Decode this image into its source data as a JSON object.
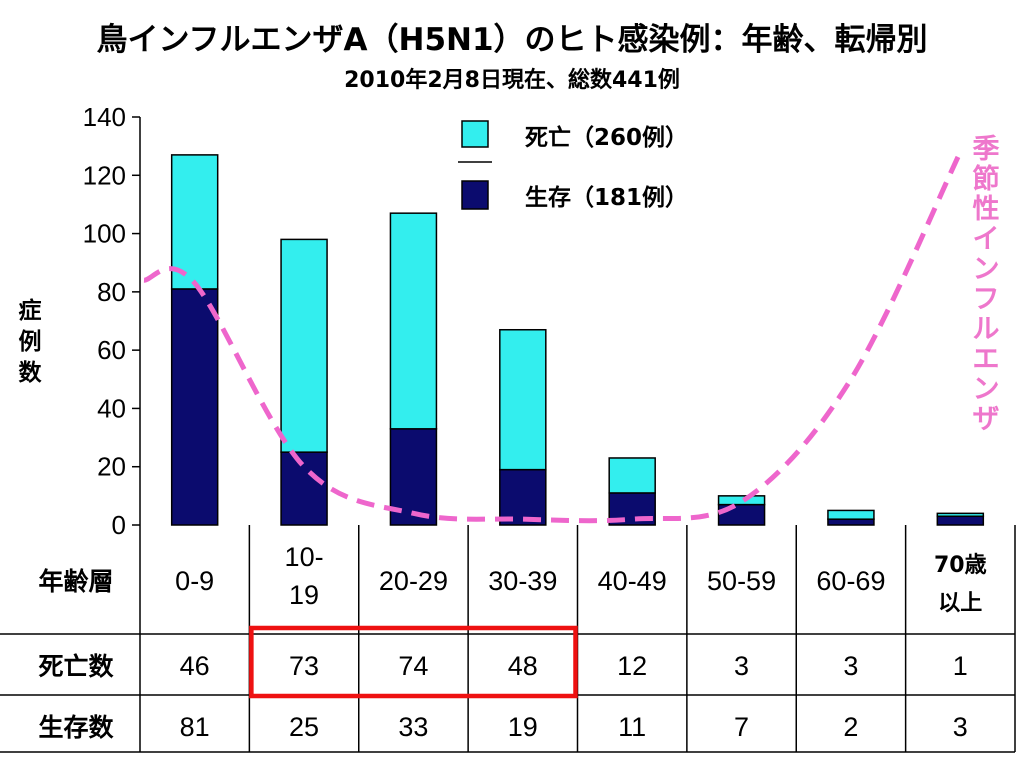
{
  "title": "鳥インフルエンザA（H5N1）のヒト感染例：年齢、転帰別",
  "subtitle": "2010年2月8日現在、総数441例",
  "colors": {
    "death": "#33eeee",
    "survive": "#0b0b6e",
    "seasonal": "#ee66cc",
    "highlight": "#ee1111"
  },
  "chart_data": {
    "type": "bar",
    "stacked": true,
    "categories": [
      "0-9",
      "10-19",
      "20-29",
      "30-39",
      "40-49",
      "50-59",
      "60-69",
      "70歳以上"
    ],
    "series": [
      {
        "name": "生存（181例）",
        "values": [
          81,
          25,
          33,
          19,
          11,
          7,
          2,
          3
        ]
      },
      {
        "name": "死亡（260例）",
        "values": [
          46,
          73,
          74,
          48,
          12,
          3,
          3,
          1
        ]
      }
    ],
    "ylabel": "症例数",
    "ylim": [
      0,
      140
    ],
    "yticks": [
      "0",
      "20",
      "40",
      "60",
      "80",
      "100",
      "120",
      "140"
    ],
    "legend": {
      "death": "死亡（260例）",
      "survive": "生存（181例）",
      "placement": "top-center"
    },
    "annotation": "季節性インフルエンザ",
    "seasonal_curve": [
      {
        "x": "0-9",
        "y": 83
      },
      {
        "x": "10-19",
        "y": 20
      },
      {
        "x": "20-29",
        "y": 4
      },
      {
        "x": "30-39",
        "y": 2
      },
      {
        "x": "40-49",
        "y": 2
      },
      {
        "x": "50-59",
        "y": 8
      },
      {
        "x": "60-69",
        "y": 50
      },
      {
        "x": "70歳以上",
        "y": 128
      }
    ]
  },
  "table": {
    "row_age_label": "年齢層",
    "row_death_label": "死亡数",
    "row_survive_label": "生存数",
    "age_cells": [
      [
        "0-9"
      ],
      [
        "10-",
        "19"
      ],
      [
        "20-29"
      ],
      [
        "30-39"
      ],
      [
        "40-49"
      ],
      [
        "50-59"
      ],
      [
        "60-69"
      ],
      [
        "70歳",
        "以上"
      ]
    ],
    "deaths": [
      "46",
      "73",
      "74",
      "48",
      "12",
      "3",
      "3",
      "1"
    ],
    "survivors": [
      "81",
      "25",
      "33",
      "19",
      "11",
      "7",
      "2",
      "3"
    ]
  }
}
